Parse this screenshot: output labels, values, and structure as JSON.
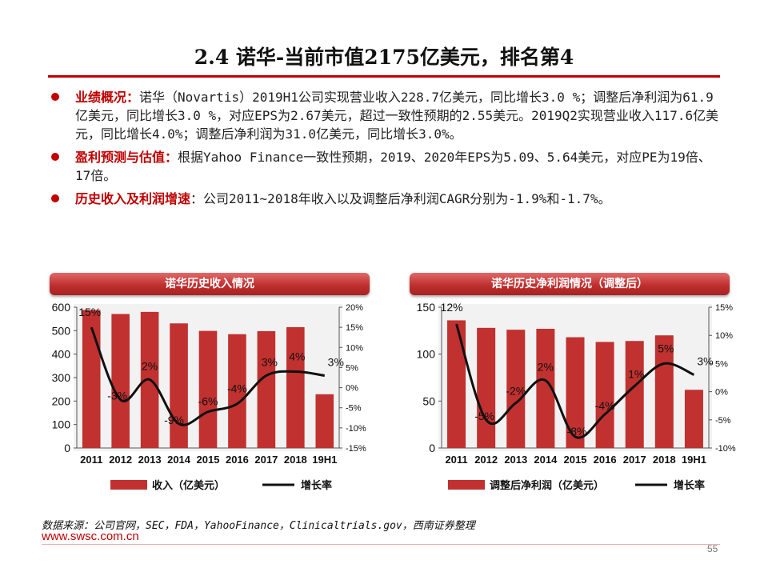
{
  "title": "2.4 诺华-当前市值2175亿美元，排名第4",
  "bullets": [
    {
      "lead": "业绩概况：",
      "text": "诺华（Novartis）2019H1公司实现营业收入228.7亿美元，同比增长3.0 %；调整后净利润为61.9亿美元，同比增长3.0 %，对应EPS为2.67美元，超过一致性预期的2.55美元。2019Q2实现营业收入117.6亿美元，同比增长4.0%；调整后净利润为31.0亿美元，同比增长3.0%。"
    },
    {
      "lead": "盈利预测与估值：",
      "text": "根据Yahoo Finance一致性预期，2019、2020年EPS为5.09、5.64美元，对应PE为19倍、17倍。"
    },
    {
      "lead": "历史收入及利润增速",
      "text": "：公司2011~2018年收入以及调整后净利润CAGR分别为-1.9%和-1.7%。"
    }
  ],
  "chart_data": [
    {
      "type": "bar",
      "title": "诺华历史收入情况",
      "categories": [
        "2011",
        "2012",
        "2013",
        "2014",
        "2015",
        "2016",
        "2017",
        "2018",
        "19H1"
      ],
      "series": [
        {
          "name": "收入（亿美元）",
          "type": "bar",
          "axis": "left",
          "values": [
            588,
            571,
            580,
            531,
            499,
            485,
            498,
            515,
            229
          ]
        },
        {
          "name": "增长率",
          "type": "line",
          "axis": "right",
          "values": [
            15,
            -3,
            2,
            -9,
            -6,
            -4,
            3,
            4,
            3
          ],
          "labels": [
            "15%",
            "-3%",
            "2%",
            "-9%",
            "-6%",
            "-4%",
            "3%",
            "4%",
            "3%"
          ]
        }
      ],
      "ylim_left": [
        0,
        600
      ],
      "yticks_left": [
        "0",
        "100",
        "200",
        "300",
        "400",
        "500",
        "600"
      ],
      "ylim_right": [
        -15,
        20
      ],
      "yticks_right": [
        "-15%",
        "-10%",
        "-5%",
        "0%",
        "5%",
        "10%",
        "15%",
        "20%"
      ],
      "legend_position": "bottom"
    },
    {
      "type": "bar",
      "title": "诺华历史净利润情况（调整后）",
      "categories": [
        "2011",
        "2012",
        "2013",
        "2014",
        "2015",
        "2016",
        "2017",
        "2018",
        "19H1"
      ],
      "series": [
        {
          "name": "调整后净利润（亿美元）",
          "type": "bar",
          "axis": "left",
          "values": [
            136,
            128,
            126,
            127,
            118,
            113,
            114,
            120,
            62
          ]
        },
        {
          "name": "增长率",
          "type": "line",
          "axis": "right",
          "values": [
            12,
            -5,
            -2,
            2,
            -8,
            -4,
            1,
            5,
            3
          ],
          "labels": [
            "12%",
            "-5%",
            "-2%",
            "2%",
            "-8%",
            "-4%",
            "1%",
            "5%",
            "3%"
          ]
        }
      ],
      "ylim_left": [
        0,
        150
      ],
      "yticks_left": [
        "0",
        "50",
        "100",
        "150"
      ],
      "ylim_right": [
        -10,
        15
      ],
      "yticks_right": [
        "-10%",
        "-5%",
        "0%",
        "5%",
        "10%",
        "15%"
      ],
      "legend_position": "bottom"
    }
  ],
  "colors": {
    "bar": "#c0312f",
    "line": "#111111",
    "accent": "#c00000"
  },
  "source": "数据来源：公司官网，SEC，FDA，YahooFinance，Clinicaltrials.gov，西南证券整理",
  "logo_text": "www.swsc.com.cn",
  "page_number": "55"
}
